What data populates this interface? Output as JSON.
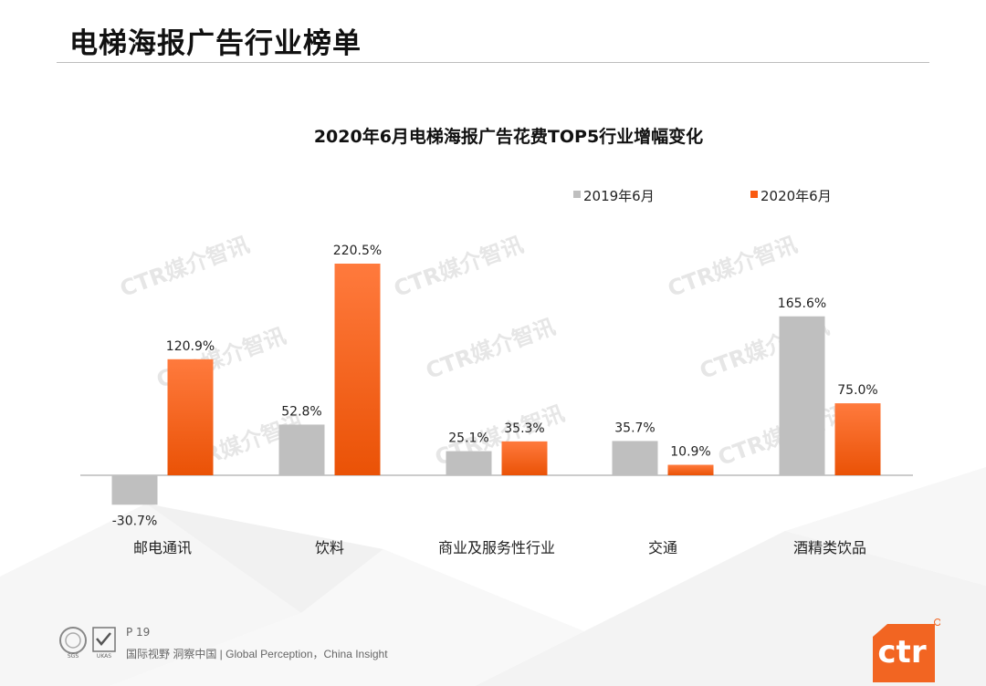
{
  "page": {
    "title": "电梯海报广告行业榜单",
    "page_number": "P 19",
    "footer": "国际视野 洞察中国 | Global Perception，China Insight",
    "brand": "ctr",
    "watermark": "CTR媒介智讯",
    "cert_badges": [
      "SGS",
      "UKAS"
    ]
  },
  "colors": {
    "series_2019": "#bfbfbf",
    "series_2020": "#fa5a10",
    "brand": "#f26522"
  },
  "chart_data": {
    "type": "bar",
    "title": "2020年6月电梯海报广告花费TOP5行业增幅变化",
    "categories": [
      "邮电通讯",
      "饮料",
      "商业及服务性行业",
      "交通",
      "酒精类饮品"
    ],
    "series": [
      {
        "name": "2019年6月",
        "values": [
          -30.7,
          52.8,
          25.1,
          35.7,
          165.6
        ],
        "labels": [
          "-30.7%",
          "52.8%",
          "25.1%",
          "35.7%",
          "165.6%"
        ]
      },
      {
        "name": "2020年6月",
        "values": [
          120.9,
          220.5,
          35.3,
          10.9,
          75.0
        ],
        "labels": [
          "120.9%",
          "220.5%",
          "35.3%",
          "10.9%",
          "75.0%"
        ]
      }
    ],
    "unit": "%",
    "legend_position": "top-right",
    "grid": false,
    "data_labels": true
  }
}
